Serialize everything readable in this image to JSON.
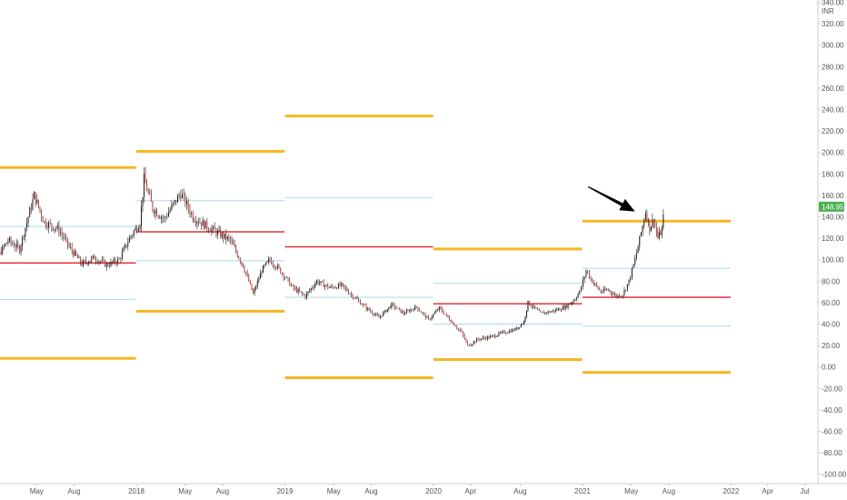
{
  "chart_data": {
    "type": "candlestick",
    "currency_label": "INR",
    "y_axis": {
      "min": -110,
      "max": 340,
      "ticks": [
        "340.00",
        "320.00",
        "300.00",
        "280.00",
        "260.00",
        "240.00",
        "220.00",
        "200.00",
        "180.00",
        "160.00",
        "140.00",
        "120.00",
        "100.00",
        "80.00",
        "60.00",
        "40.00",
        "20.00",
        "0.00",
        "-20.00",
        "-40.00",
        "-60.00",
        "-80.00",
        "-100.00"
      ]
    },
    "x_axis": {
      "ticks": [
        {
          "label": "May",
          "date": "2017-05-01"
        },
        {
          "label": "Aug",
          "date": "2017-08-01"
        },
        {
          "label": "2018",
          "date": "2018-01-01"
        },
        {
          "label": "May",
          "date": "2018-05-01"
        },
        {
          "label": "Aug",
          "date": "2018-08-01"
        },
        {
          "label": "2019",
          "date": "2019-01-01"
        },
        {
          "label": "May",
          "date": "2019-05-01"
        },
        {
          "label": "Aug",
          "date": "2019-08-01"
        },
        {
          "label": "2020",
          "date": "2020-01-01"
        },
        {
          "label": "Apr",
          "date": "2020-04-01"
        },
        {
          "label": "Aug",
          "date": "2020-08-01"
        },
        {
          "label": "2021",
          "date": "2021-01-01"
        },
        {
          "label": "May",
          "date": "2021-05-01"
        },
        {
          "label": "Aug",
          "date": "2021-08-01"
        },
        {
          "label": "2022",
          "date": "2022-01-01"
        },
        {
          "label": "Apr",
          "date": "2022-04-01"
        },
        {
          "label": "Jul",
          "date": "2022-07-01"
        }
      ]
    },
    "last_price": "148.95",
    "price_path": [
      [
        "2016-12-15",
        105
      ],
      [
        "2017-01-20",
        100
      ],
      [
        "2017-02-20",
        118
      ],
      [
        "2017-03-20",
        110
      ],
      [
        "2017-04-25",
        160
      ],
      [
        "2017-05-20",
        135
      ],
      [
        "2017-06-25",
        128
      ],
      [
        "2017-07-20",
        112
      ],
      [
        "2017-08-20",
        96
      ],
      [
        "2017-09-20",
        102
      ],
      [
        "2017-10-20",
        95
      ],
      [
        "2017-11-20",
        100
      ],
      [
        "2017-12-15",
        120
      ],
      [
        "2018-01-10",
        135
      ],
      [
        "2018-01-20",
        175
      ],
      [
        "2018-02-10",
        148
      ],
      [
        "2018-03-10",
        138
      ],
      [
        "2018-04-20",
        162
      ],
      [
        "2018-05-20",
        140
      ],
      [
        "2018-06-20",
        132
      ],
      [
        "2018-07-20",
        125
      ],
      [
        "2018-08-20",
        118
      ],
      [
        "2018-09-20",
        95
      ],
      [
        "2018-10-15",
        68
      ],
      [
        "2018-11-05",
        90
      ],
      [
        "2018-11-25",
        100
      ],
      [
        "2018-12-25",
        88
      ],
      [
        "2019-01-20",
        74
      ],
      [
        "2019-02-20",
        66
      ],
      [
        "2019-03-20",
        80
      ],
      [
        "2019-04-20",
        74
      ],
      [
        "2019-05-20",
        76
      ],
      [
        "2019-06-20",
        65
      ],
      [
        "2019-07-20",
        55
      ],
      [
        "2019-08-20",
        46
      ],
      [
        "2019-09-20",
        58
      ],
      [
        "2019-10-20",
        50
      ],
      [
        "2019-11-20",
        56
      ],
      [
        "2019-12-20",
        44
      ],
      [
        "2020-01-15",
        55
      ],
      [
        "2020-02-20",
        40
      ],
      [
        "2020-03-10",
        32
      ],
      [
        "2020-03-25",
        20
      ],
      [
        "2020-04-20",
        26
      ],
      [
        "2020-05-20",
        28
      ],
      [
        "2020-06-20",
        32
      ],
      [
        "2020-07-20",
        35
      ],
      [
        "2020-08-10",
        42
      ],
      [
        "2020-08-20",
        60
      ],
      [
        "2020-09-20",
        50
      ],
      [
        "2020-10-20",
        52
      ],
      [
        "2020-11-20",
        56
      ],
      [
        "2020-12-10",
        62
      ],
      [
        "2020-12-25",
        70
      ],
      [
        "2021-01-10",
        90
      ],
      [
        "2021-01-25",
        80
      ],
      [
        "2021-02-15",
        70
      ],
      [
        "2021-03-05",
        72
      ],
      [
        "2021-03-25",
        66
      ],
      [
        "2021-04-10",
        68
      ],
      [
        "2021-04-25",
        80
      ],
      [
        "2021-05-10",
        100
      ],
      [
        "2021-05-25",
        125
      ],
      [
        "2021-06-05",
        145
      ],
      [
        "2021-06-15",
        130
      ],
      [
        "2021-06-25",
        138
      ],
      [
        "2021-07-05",
        120
      ],
      [
        "2021-07-15",
        128
      ],
      [
        "2021-07-22",
        150
      ]
    ],
    "pivot_levels": [
      {
        "start": "2016-12-01",
        "end": "2017-12-31",
        "r2": 186,
        "r1": 131,
        "p": 97,
        "s1": 63,
        "s2": 8
      },
      {
        "start": "2018-01-01",
        "end": "2018-12-31",
        "r2": 201,
        "r1": 155,
        "p": 126,
        "s1": 99,
        "s2": 52
      },
      {
        "start": "2019-01-01",
        "end": "2019-12-31",
        "r2": 234,
        "r1": 158,
        "p": 112,
        "s1": 65,
        "s2": -10
      },
      {
        "start": "2020-01-01",
        "end": "2020-12-31",
        "r2": 110,
        "r1": 78,
        "p": 59,
        "s1": 40,
        "s2": 7
      },
      {
        "start": "2021-01-01",
        "end": "2021-12-31",
        "r2": 136,
        "r1": 92,
        "p": 65,
        "s1": 38,
        "s2": -5
      }
    ],
    "arrow": {
      "from": [
        "2021-01-15",
        168
      ],
      "to": [
        "2021-05-10",
        145
      ]
    },
    "colors": {
      "r2_s2": "#f5b722",
      "r1_s1": "#a8dcec",
      "pivot": "#e0343a",
      "candle": "#1a1a1a",
      "price_tag": "#4caf50",
      "axis": "#555555"
    }
  }
}
